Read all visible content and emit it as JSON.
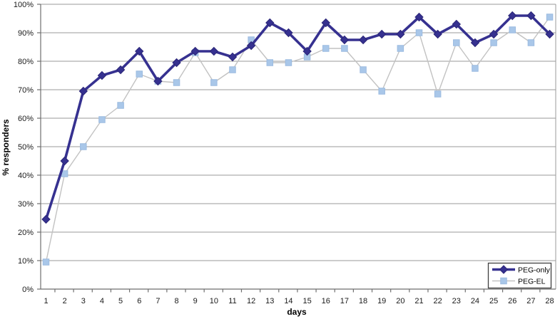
{
  "chart_data": {
    "type": "line",
    "title": "",
    "xlabel": "days",
    "ylabel": "% responders",
    "x": [
      1,
      2,
      3,
      4,
      5,
      6,
      7,
      8,
      9,
      10,
      11,
      12,
      13,
      14,
      15,
      16,
      17,
      18,
      19,
      20,
      21,
      22,
      23,
      24,
      25,
      26,
      27,
      28
    ],
    "ylim": [
      0,
      100
    ],
    "ytick_step": 10,
    "ytick_suffix": "%",
    "grid": true,
    "legend_position": "bottom-right",
    "series": [
      {
        "name": "PEG-only",
        "line_color": "#363190",
        "line_width": 3.6,
        "marker": "diamond",
        "marker_fill": "#363190",
        "marker_border": "#2b2677",
        "marker_size": 11,
        "values": [
          24.5,
          45,
          69.5,
          75,
          77,
          83.5,
          73,
          79.5,
          83.5,
          83.5,
          81.5,
          85.5,
          93.5,
          90,
          83.5,
          93.5,
          87.5,
          87.5,
          89.5,
          89.5,
          95.5,
          89.5,
          93,
          86.5,
          89.5,
          96,
          96,
          89.5
        ]
      },
      {
        "name": "PEG-EL",
        "line_color": "#c2c2c2",
        "line_width": 1.4,
        "marker": "square",
        "marker_fill": "#a9c7e9",
        "marker_border": "#9cbbe0",
        "marker_size": 8.5,
        "values": [
          9.5,
          40.5,
          50,
          59.5,
          64.5,
          75.5,
          73,
          72.5,
          83,
          72.5,
          77,
          87.5,
          79.5,
          79.5,
          81.5,
          84.5,
          84.5,
          77,
          69.5,
          84.5,
          90,
          68.5,
          86.5,
          77.5,
          86.5,
          91,
          86.5,
          95.5
        ]
      }
    ],
    "colors": {
      "gridline": "#9a9a9a",
      "axis": "#6e6e6e",
      "text": "#000000",
      "background": "#ffffff"
    }
  }
}
